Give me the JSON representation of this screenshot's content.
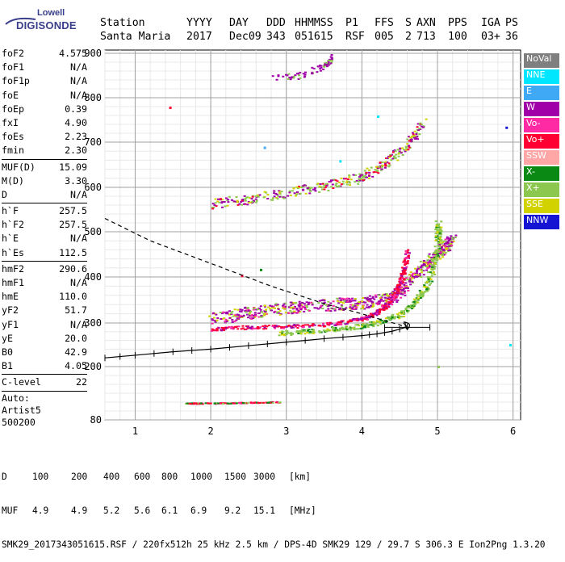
{
  "logo": {
    "line1": "Lowell",
    "line2": "DIGISONDE"
  },
  "header": {
    "row1": [
      "Station",
      "YYYY",
      "DAY",
      "DDD",
      "HHMMSS",
      "P1",
      "FFS",
      "S",
      "AXN",
      "PPS",
      "IGA",
      "PS"
    ],
    "row2": [
      "Santa Maria",
      "2017",
      "Dec09",
      "343",
      "051615",
      "RSF",
      "005",
      "2",
      "713",
      "100",
      "03+",
      "36"
    ]
  },
  "params": {
    "group1": [
      {
        "label": "foF2",
        "value": "4.575"
      },
      {
        "label": "foF1",
        "value": "N/A"
      },
      {
        "label": "foF1p",
        "value": "N/A"
      },
      {
        "label": "foE",
        "value": "N/A"
      },
      {
        "label": "foEp",
        "value": "0.39"
      },
      {
        "label": "fxI",
        "value": "4.90"
      },
      {
        "label": "foEs",
        "value": "2.23"
      },
      {
        "label": "fmin",
        "value": "2.30"
      }
    ],
    "group2": [
      {
        "label": "MUF(D)",
        "value": "15.09"
      },
      {
        "label": "M(D)",
        "value": "3.30"
      },
      {
        "label": "D",
        "value": "N/A"
      }
    ],
    "group3": [
      {
        "label": "h`F",
        "value": "257.5"
      },
      {
        "label": "h`F2",
        "value": "257.5"
      },
      {
        "label": "h`E",
        "value": "N/A"
      },
      {
        "label": "h`Es",
        "value": "112.5"
      }
    ],
    "group4": [
      {
        "label": "hmF2",
        "value": "290.6"
      },
      {
        "label": "hmF1",
        "value": "N/A"
      },
      {
        "label": "hmE",
        "value": "110.0"
      },
      {
        "label": "yF2",
        "value": "51.7"
      },
      {
        "label": "yF1",
        "value": "N/A"
      },
      {
        "label": "yE",
        "value": "20.0"
      },
      {
        "label": "B0",
        "value": "42.9"
      },
      {
        "label": "B1",
        "value": "4.05"
      }
    ],
    "group5": [
      {
        "label": "C-level",
        "value": "22"
      }
    ],
    "autoscale": [
      "Auto:",
      "Artist5",
      "500200"
    ]
  },
  "legend": [
    {
      "label": "NoVal",
      "color": "#7f7f7f"
    },
    {
      "label": "NNE",
      "color": "#00e6ff"
    },
    {
      "label": "E",
      "color": "#3fa9f5"
    },
    {
      "label": "W",
      "color": "#a000a8"
    },
    {
      "label": "Vo-",
      "color": "#ff2aa4"
    },
    {
      "label": "Vo+",
      "color": "#ff0033"
    },
    {
      "label": "SSW",
      "color": "#ffa6a6"
    },
    {
      "label": "X-",
      "color": "#0a8a14"
    },
    {
      "label": "X+",
      "color": "#8cc850"
    },
    {
      "label": "SSE",
      "color": "#d2d200"
    },
    {
      "label": "NNW",
      "color": "#1414d2"
    }
  ],
  "footer": {
    "distance_row": [
      "D",
      "100",
      "200",
      "400",
      "600",
      "800",
      "1000",
      "1500",
      "3000",
      "[km]"
    ],
    "muf_row": [
      "MUF",
      "4.9",
      "4.9",
      "5.2",
      "5.6",
      "6.1",
      "6.9",
      "9.2",
      "15.1",
      "[MHz]"
    ],
    "info": "SMK29_2017343051615.RSF / 220fx512h 25 kHz 2.5 km / DPS-4D SMK29 129 / 29.7 S 306.3 E Ion2Png 1.3.20"
  },
  "chart_data": {
    "type": "scatter",
    "xlim": [
      0.6,
      6.1
    ],
    "x_ticks": [
      1,
      2,
      3,
      4,
      5,
      6
    ],
    "y_ticks": [
      80,
      200,
      300,
      400,
      500,
      600,
      700,
      800,
      900
    ],
    "y_axis_note": "nonlinear height scale (km), 80 km at bottom, 900 km at top",
    "grid": true,
    "series": [
      {
        "label": "F2 trace O-mode (Vo+)",
        "color_key": "Vo+",
        "points": [
          [
            2.0,
            285
          ],
          [
            2.5,
            290
          ],
          [
            3.0,
            292
          ],
          [
            3.5,
            296
          ],
          [
            3.9,
            305
          ],
          [
            4.1,
            315
          ],
          [
            4.3,
            335
          ],
          [
            4.4,
            355
          ],
          [
            4.5,
            385
          ],
          [
            4.55,
            420
          ],
          [
            4.6,
            460
          ]
        ]
      },
      {
        "label": "F2 trace X-mode (X+)",
        "color_key": "X+",
        "points": [
          [
            2.9,
            275
          ],
          [
            3.4,
            282
          ],
          [
            3.9,
            290
          ],
          [
            4.2,
            300
          ],
          [
            4.5,
            318
          ],
          [
            4.7,
            345
          ],
          [
            4.85,
            380
          ],
          [
            4.95,
            430
          ],
          [
            5.0,
            480
          ],
          [
            5.0,
            520
          ]
        ]
      },
      {
        "label": "F2 diffuse (W)",
        "color_key": "W",
        "points": [
          [
            2.0,
            305
          ],
          [
            2.5,
            318
          ],
          [
            3.0,
            328
          ],
          [
            3.5,
            335
          ],
          [
            4.0,
            340
          ],
          [
            4.4,
            350
          ],
          [
            4.7,
            400
          ],
          [
            5.0,
            450
          ],
          [
            5.2,
            480
          ]
        ]
      },
      {
        "label": "Second-hop (W/X+/SSE)",
        "color_key": "X+",
        "points": [
          [
            2.0,
            560
          ],
          [
            2.5,
            570
          ],
          [
            3.0,
            585
          ],
          [
            3.5,
            600
          ],
          [
            4.0,
            620
          ],
          [
            4.3,
            650
          ],
          [
            4.6,
            690
          ],
          [
            4.8,
            740
          ]
        ]
      },
      {
        "label": "Third-hop (W/X+)",
        "color_key": "X+",
        "points": [
          [
            2.8,
            840
          ],
          [
            3.2,
            850
          ],
          [
            3.5,
            870
          ],
          [
            3.6,
            890
          ]
        ]
      },
      {
        "label": "Sporadic E (Vo+/X-/X+)",
        "color_key": "X-",
        "points": [
          [
            1.65,
            118
          ],
          [
            2.0,
            118
          ],
          [
            2.3,
            119
          ],
          [
            2.6,
            120
          ],
          [
            2.9,
            121
          ]
        ]
      }
    ],
    "profile": {
      "label": "Electron density profile",
      "style": "dashed",
      "points": [
        [
          0.6,
          530
        ],
        [
          1.2,
          480
        ],
        [
          2.0,
          430
        ],
        [
          2.8,
          380
        ],
        [
          3.5,
          342
        ],
        [
          4.0,
          320
        ],
        [
          4.3,
          305
        ],
        [
          4.5,
          296
        ],
        [
          4.58,
          290
        ],
        [
          4.6,
          285
        ]
      ]
    },
    "auto_trace": {
      "label": "Auto-scaled trace with error bars",
      "style": "solid",
      "points": [
        [
          0.6,
          220
        ],
        [
          1.0,
          226
        ],
        [
          1.5,
          234
        ],
        [
          2.0,
          240
        ],
        [
          2.5,
          248
        ],
        [
          3.0,
          256
        ],
        [
          3.5,
          264
        ],
        [
          4.0,
          271
        ],
        [
          4.2,
          275
        ],
        [
          4.4,
          281
        ],
        [
          4.6,
          291
        ],
        [
          4.55,
          300
        ]
      ]
    }
  }
}
